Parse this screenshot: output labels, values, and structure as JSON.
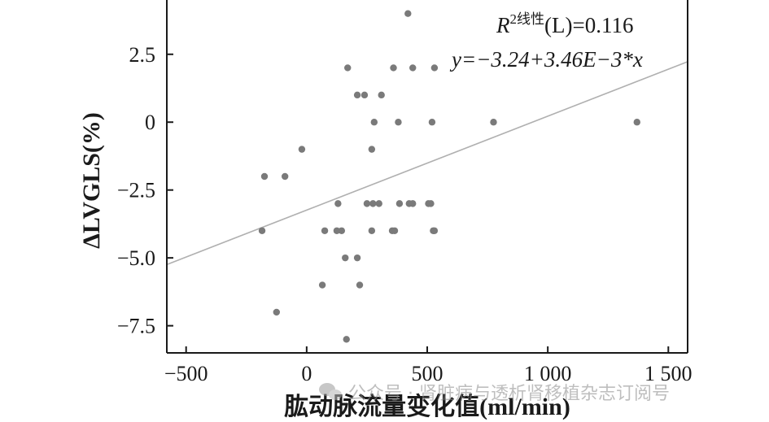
{
  "chart_data": {
    "type": "scatter",
    "xlabel": "肱动脉流量变化值(ml/min)",
    "ylabel": "ΔLVGLS(%)",
    "xlim": [
      -580,
      1580
    ],
    "ylim": [
      -8.5,
      4.5
    ],
    "x_ticks": [
      {
        "value": -500,
        "label": "−500"
      },
      {
        "value": 0,
        "label": "0"
      },
      {
        "value": 500,
        "label": "500"
      },
      {
        "value": 1000,
        "label": "1 000"
      },
      {
        "value": 1500,
        "label": "1 500"
      }
    ],
    "y_ticks": [
      {
        "value": 2.5,
        "label": "2.5"
      },
      {
        "value": 0,
        "label": "0"
      },
      {
        "value": -2.5,
        "label": "−2.5"
      },
      {
        "value": -5.0,
        "label": "−5.0"
      },
      {
        "value": -7.5,
        "label": "−7.5"
      }
    ],
    "annotations": {
      "r2_label": "R",
      "r2_sup": "2线性",
      "r2_value": "(L)=0.116",
      "equation": "y=−3.24+3.46E−3*x"
    },
    "fit_line": {
      "intercept": -3.24,
      "slope": 0.00346
    },
    "points": [
      {
        "x": 420,
        "y": 4
      },
      {
        "x": 170,
        "y": 2
      },
      {
        "x": 360,
        "y": 2
      },
      {
        "x": 440,
        "y": 2
      },
      {
        "x": 530,
        "y": 2
      },
      {
        "x": 210,
        "y": 1
      },
      {
        "x": 240,
        "y": 1
      },
      {
        "x": 310,
        "y": 1
      },
      {
        "x": 280,
        "y": 0
      },
      {
        "x": 380,
        "y": 0
      },
      {
        "x": 520,
        "y": 0
      },
      {
        "x": 775,
        "y": 0
      },
      {
        "x": 1370,
        "y": 0
      },
      {
        "x": -20,
        "y": -1
      },
      {
        "x": 270,
        "y": -1
      },
      {
        "x": -175,
        "y": -2
      },
      {
        "x": -90,
        "y": -2
      },
      {
        "x": 130,
        "y": -3
      },
      {
        "x": 250,
        "y": -3
      },
      {
        "x": 275,
        "y": -3
      },
      {
        "x": 300,
        "y": -3
      },
      {
        "x": 385,
        "y": -3
      },
      {
        "x": 425,
        "y": -3
      },
      {
        "x": 440,
        "y": -3
      },
      {
        "x": 505,
        "y": -3
      },
      {
        "x": 515,
        "y": -3
      },
      {
        "x": -185,
        "y": -4
      },
      {
        "x": 75,
        "y": -4
      },
      {
        "x": 125,
        "y": -4
      },
      {
        "x": 145,
        "y": -4
      },
      {
        "x": 270,
        "y": -4
      },
      {
        "x": 355,
        "y": -4
      },
      {
        "x": 365,
        "y": -4
      },
      {
        "x": 525,
        "y": -4
      },
      {
        "x": 530,
        "y": -4
      },
      {
        "x": 160,
        "y": -5
      },
      {
        "x": 210,
        "y": -5
      },
      {
        "x": 65,
        "y": -6
      },
      {
        "x": 220,
        "y": -6
      },
      {
        "x": -125,
        "y": -7
      },
      {
        "x": 165,
        "y": -8
      }
    ],
    "colors": {
      "point": "#7a7a7a",
      "fit_line": "#b0b0b0",
      "axis": "#1a1a1a"
    },
    "grid": false
  },
  "watermark": {
    "text": "公众号 · 肾脏病与透析肾移植杂志订阅号",
    "icon": "wechat-icon"
  }
}
